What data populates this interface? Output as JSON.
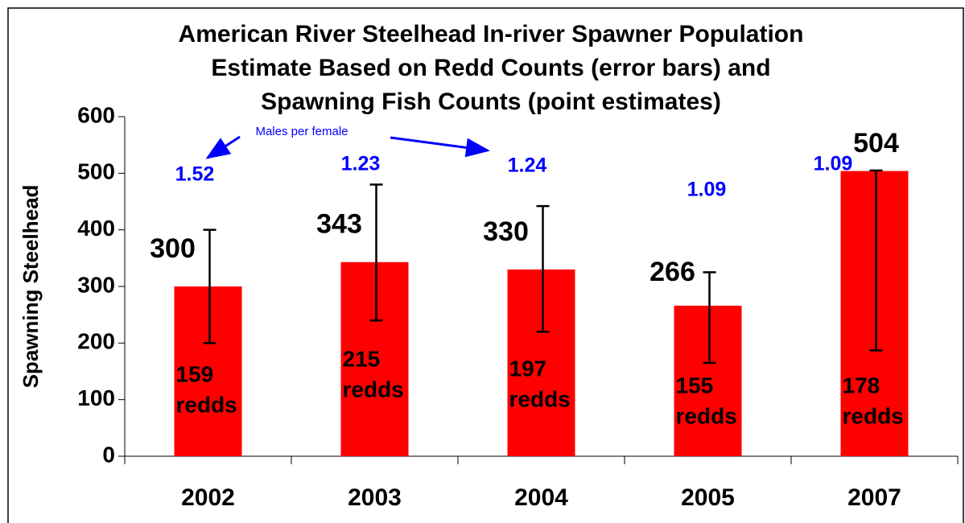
{
  "chart_data": {
    "type": "bar",
    "title": [
      "American River Steelhead In-river Spawner Population",
      "Estimate Based on Redd Counts (error bars) and",
      "Spawning Fish Counts (point estimates)"
    ],
    "y_label": "Spawning Steelhead",
    "categories": [
      "2002",
      "2003",
      "2004",
      "2005",
      "2007"
    ],
    "values": [
      300,
      343,
      330,
      266,
      504
    ],
    "color": "#ff0000",
    "error_low": [
      200,
      240,
      220,
      165,
      187
    ],
    "error_high": [
      400,
      480,
      442,
      325,
      505
    ],
    "redd_counts": [
      159,
      215,
      197,
      155,
      178
    ],
    "redd_unit": "redds",
    "males_per_female": [
      1.52,
      1.23,
      1.24,
      1.09,
      1.09
    ],
    "annotation": "Males per female",
    "ylim": [
      0,
      600
    ],
    "yticks": [
      0,
      100,
      200,
      300,
      400,
      500,
      600
    ],
    "grid": false
  }
}
